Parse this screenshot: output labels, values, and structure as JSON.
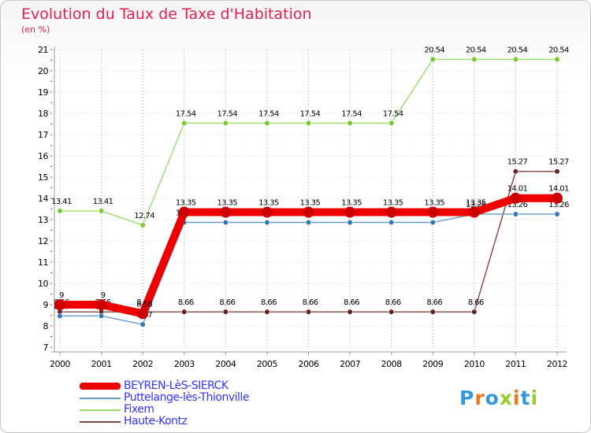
{
  "page": {
    "title": "Evolution du Taux de Taxe d'Habitation",
    "subtitle": "(en %)"
  },
  "logo": {
    "text": "Proxiti"
  },
  "chart_data": {
    "type": "line",
    "title": "Evolution du Taux de Taxe d'Habitation",
    "ylabel": "(en %)",
    "xlabel": "",
    "ylim": [
      7,
      21
    ],
    "x": [
      "2000",
      "2001",
      "2002",
      "2003",
      "2004",
      "2005",
      "2006",
      "2007",
      "2008",
      "2009",
      "2010",
      "2011",
      "2012"
    ],
    "y_ticks": [
      "7",
      "8",
      "9",
      "10",
      "11",
      "12",
      "13",
      "14",
      "15",
      "16",
      "17",
      "18",
      "19",
      "20",
      "21"
    ],
    "legend_position": "bottom-left",
    "series": [
      {
        "name": "Fixem",
        "color": "#99dd66",
        "marker": "#77cc33",
        "values": [
          13.41,
          13.41,
          12.74,
          17.54,
          17.54,
          17.54,
          17.54,
          17.54,
          17.54,
          20.54,
          20.54,
          20.54,
          20.54
        ],
        "labels": [
          "13.41",
          "13.41",
          "12.74",
          "17.54",
          "17.54",
          "17.54",
          "17.54",
          "17.54",
          "17.54",
          "20.54",
          "20.54",
          "20.54",
          "20.54"
        ]
      },
      {
        "name": "Haute-Kontz",
        "color": "#884444",
        "marker": "#662222",
        "values": [
          8.66,
          8.66,
          8.66,
          8.66,
          8.66,
          8.66,
          8.66,
          8.66,
          8.66,
          8.66,
          8.66,
          15.27,
          15.27
        ],
        "labels": [
          "8.66",
          "8.66",
          "8.66",
          "8.66",
          "8.66",
          "8.66",
          "8.66",
          "8.66",
          "8.66",
          "8.66",
          "8.66",
          "15.27",
          "15.27"
        ]
      },
      {
        "name": "Puttelange-lès-Thionville",
        "color": "#6699cc",
        "marker": "#3377bb",
        "values": [
          8.47,
          8.47,
          8.07,
          12.87,
          12.87,
          12.87,
          12.87,
          12.87,
          12.87,
          12.87,
          13.26,
          13.26,
          13.26
        ],
        "labels": [
          "8.47",
          "8.47",
          "8.07",
          "12.87",
          "12.87",
          "12.87",
          "12.87",
          "12.87",
          "12.87",
          "12.87",
          "13.26",
          "13.26",
          "13.26"
        ]
      },
      {
        "name": "BEYREN-LèS-SIERCK",
        "color": "#ee0000",
        "marker": "#cc0000",
        "values": [
          9,
          9,
          8.58,
          13.35,
          13.35,
          13.35,
          13.35,
          13.35,
          13.35,
          13.35,
          13.35,
          14.01,
          14.01
        ],
        "labels": [
          "9",
          "9",
          "8.58",
          "13.35",
          "13.35",
          "13.35",
          "13.35",
          "13.35",
          "13.35",
          "13.35",
          "13.35",
          "14.01",
          "14.01"
        ]
      }
    ],
    "legend_order": [
      "BEYREN-LèS-SIERCK",
      "Puttelange-lès-Thionville",
      "Fixem",
      "Haute-Kontz"
    ]
  }
}
